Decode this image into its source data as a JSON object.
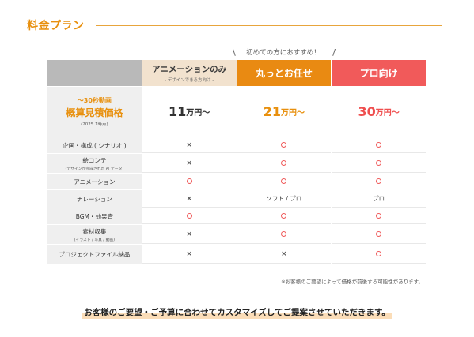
{
  "header": {
    "title": "料金プラン"
  },
  "callout": "初めての方におすすめ！",
  "plans": [
    {
      "name": "アニメーションのみ",
      "sub": "- デザインできる方向け -"
    },
    {
      "name": "丸っとお任せ"
    },
    {
      "name": "プロ向け"
    }
  ],
  "price_label": {
    "top": "〜30秒動画",
    "main": "概算見積価格",
    "date": "(2025.1時点)"
  },
  "prices": [
    {
      "num": "11",
      "unit": "万円〜"
    },
    {
      "num": "21",
      "unit": "万円〜"
    },
    {
      "num": "30",
      "unit": "万円〜"
    }
  ],
  "features": [
    {
      "label": "企画・構成 ( シナリオ )",
      "sub": "",
      "values": [
        "×",
        "○",
        "○"
      ]
    },
    {
      "label": "絵コンテ",
      "sub": "(デザインが完成された Ai データ)",
      "values": [
        "×",
        "○",
        "○"
      ]
    },
    {
      "label": "アニメーション",
      "sub": "",
      "values": [
        "○",
        "○",
        "○"
      ]
    },
    {
      "label": "ナレーション",
      "sub": "",
      "values": [
        "×",
        "ソフト / プロ",
        "プロ"
      ]
    },
    {
      "label": "BGM・効果音",
      "sub": "",
      "values": [
        "○",
        "○",
        "○"
      ]
    },
    {
      "label": "素材収集",
      "sub": "(イラスト / 写真 / 動画)",
      "values": [
        "×",
        "○",
        "○"
      ]
    },
    {
      "label": "プロジェクトファイル納品",
      "sub": "",
      "values": [
        "×",
        "×",
        "○"
      ]
    }
  ],
  "note": "※お客様のご要望によって価格が前後する可能性があります。",
  "footer_message": "お客様のご要望・ご予算に合わせてカスタマイズしてご提案させていただきます。",
  "colors": {
    "accent": "#E8900E",
    "plan1": "#F2E2CE",
    "plan2": "#E98A12",
    "plan3": "#F15A5A",
    "label_bg": "#EFEFEF"
  }
}
